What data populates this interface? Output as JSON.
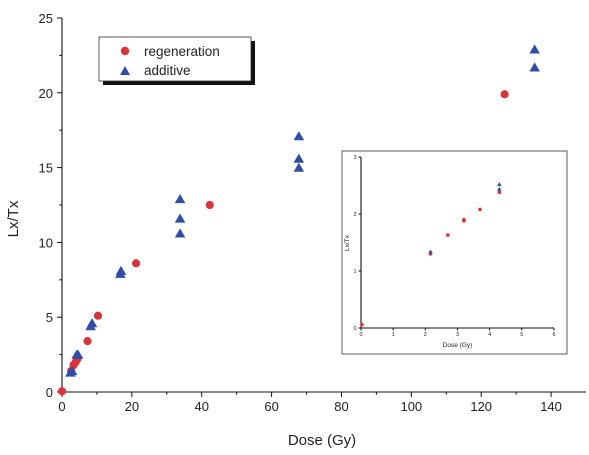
{
  "chart_data": {
    "type": "scatter",
    "xlabel": "Dose (Gy)",
    "ylabel": "Lx/Tx",
    "xlim": [
      0,
      150
    ],
    "ylim": [
      0,
      25
    ],
    "xticks": [
      0,
      20,
      40,
      60,
      80,
      100,
      120,
      140
    ],
    "yticks": [
      0,
      5,
      10,
      15,
      20,
      25
    ],
    "grid": false,
    "legend": "top-left",
    "series": [
      {
        "name": "regeneration",
        "marker": "circle",
        "color": "#d9343a",
        "points": [
          [
            0,
            0.05
          ],
          [
            2.6,
            1.4
          ],
          [
            3.3,
            1.8
          ],
          [
            3.9,
            2.0
          ],
          [
            4.4,
            2.2
          ],
          [
            7.3,
            3.4
          ],
          [
            10.3,
            5.1
          ],
          [
            21.2,
            8.6
          ],
          [
            42.3,
            12.5
          ],
          [
            126.7,
            19.9
          ]
        ]
      },
      {
        "name": "additive",
        "marker": "triangle",
        "color": "#2f4ea8",
        "points": [
          [
            2.4,
            1.3
          ],
          [
            2.9,
            1.4
          ],
          [
            4.2,
            2.5
          ],
          [
            4.6,
            2.5
          ],
          [
            8.2,
            4.4
          ],
          [
            8.6,
            4.6
          ],
          [
            16.7,
            7.9
          ],
          [
            16.9,
            8.1
          ],
          [
            33.8,
            10.6
          ],
          [
            33.8,
            11.6
          ],
          [
            33.8,
            12.9
          ],
          [
            67.8,
            15.0
          ],
          [
            67.8,
            15.6
          ],
          [
            67.8,
            17.1
          ],
          [
            135.3,
            21.7
          ],
          [
            135.3,
            22.9
          ]
        ]
      }
    ],
    "inset": {
      "type": "scatter",
      "xlabel": "Dose (Gy)",
      "ylabel": "Lx/Tx",
      "xlim": [
        0,
        6
      ],
      "ylim": [
        0,
        3
      ],
      "xticks": [
        0,
        1,
        2,
        3,
        4,
        5,
        6
      ],
      "yticks": [
        0,
        1,
        2,
        3
      ],
      "series": [
        {
          "name": "regeneration",
          "marker": "circle",
          "color": "#d9343a",
          "points": [
            [
              0.03,
              0.06
            ],
            [
              2.16,
              1.3
            ],
            [
              2.7,
              1.63
            ],
            [
              3.2,
              1.88
            ],
            [
              3.2,
              1.9
            ],
            [
              3.7,
              2.08
            ],
            [
              4.3,
              2.38
            ]
          ]
        },
        {
          "name": "additive",
          "marker": "triangle",
          "color": "#2f4ea8",
          "points": [
            [
              2.16,
              1.34
            ],
            [
              4.3,
              2.44
            ],
            [
              4.3,
              2.52
            ]
          ]
        }
      ]
    }
  }
}
